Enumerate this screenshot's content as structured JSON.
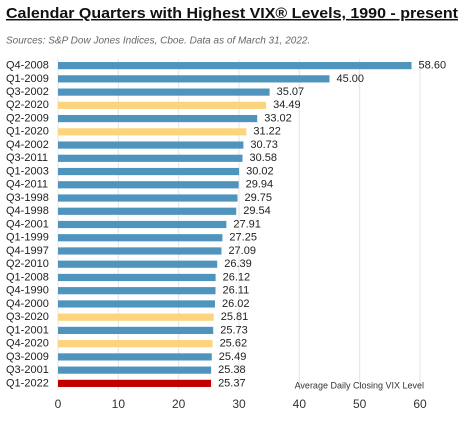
{
  "chart_data": {
    "type": "bar",
    "orientation": "horizontal",
    "title": "Calendar Quarters with Highest VIX® Levels, 1990 - present",
    "subtitle": "Sources: S&P Dow Jones Indices, Cboe.  Data as of March 31, 2022.",
    "x_label": "Average Daily Closing VIX Level",
    "categories": [
      "Q4-2008",
      "Q1-2009",
      "Q3-2002",
      "Q2-2020",
      "Q2-2009",
      "Q1-2020",
      "Q4-2002",
      "Q3-2011",
      "Q1-2003",
      "Q4-2011",
      "Q3-1998",
      "Q4-1998",
      "Q4-2001",
      "Q1-1999",
      "Q4-1997",
      "Q2-2010",
      "Q1-2008",
      "Q4-1990",
      "Q4-2000",
      "Q3-2020",
      "Q1-2001",
      "Q4-2020",
      "Q3-2009",
      "Q3-2001",
      "Q1-2022"
    ],
    "values": [
      58.6,
      45,
      35.07,
      34.49,
      33.02,
      31.22,
      30.73,
      30.58,
      30.02,
      29.94,
      29.75,
      29.54,
      27.91,
      27.25,
      27.09,
      26.39,
      26.12,
      26.11,
      26.02,
      25.81,
      25.73,
      25.62,
      25.49,
      25.38,
      25.37
    ],
    "value_labels": [
      "58.60",
      "45.00",
      "35.07",
      "34.49",
      "33.02",
      "31.22",
      "30.73",
      "30.58",
      "30.02",
      "29.94",
      "29.75",
      "29.54",
      "27.91",
      "27.25",
      "27.09",
      "26.39",
      "26.12",
      "26.11",
      "26.02",
      "25.81",
      "25.73",
      "25.62",
      "25.49",
      "25.38",
      "25.37"
    ],
    "colors": [
      "#4f94bd",
      "#4f94bd",
      "#4f94bd",
      "#fdd47e",
      "#4f94bd",
      "#fdd47e",
      "#4f94bd",
      "#4f94bd",
      "#4f94bd",
      "#4f94bd",
      "#4f94bd",
      "#4f94bd",
      "#4f94bd",
      "#4f94bd",
      "#4f94bd",
      "#4f94bd",
      "#4f94bd",
      "#4f94bd",
      "#4f94bd",
      "#fdd47e",
      "#4f94bd",
      "#fdd47e",
      "#4f94bd",
      "#4f94bd",
      "#c00000"
    ],
    "xlim": [
      0,
      60
    ],
    "xticks": [
      0,
      10,
      20,
      30,
      40,
      50,
      60
    ],
    "grid": true
  }
}
